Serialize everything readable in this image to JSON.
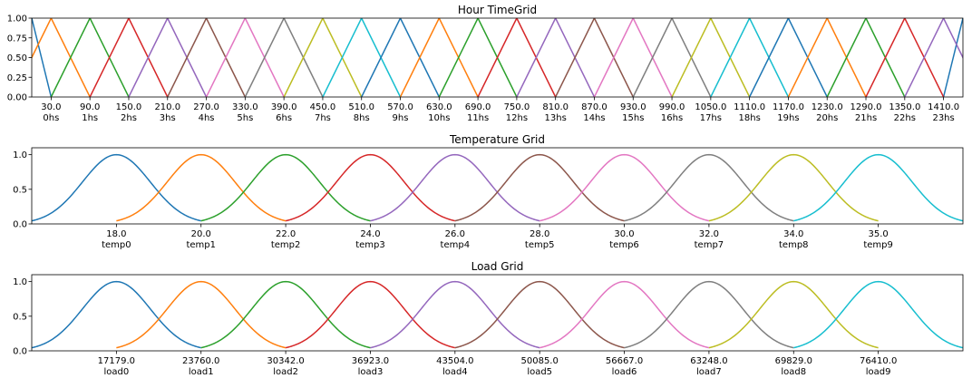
{
  "chart_data": [
    {
      "type": "line",
      "title": "Hour TimeGrid",
      "xlim": [
        0,
        1440
      ],
      "ylim": [
        0,
        1
      ],
      "yticks": [
        {
          "value": 0,
          "label": "0.00"
        },
        {
          "value": 0.25,
          "label": "0.25"
        },
        {
          "value": 0.5,
          "label": "0.50"
        },
        {
          "value": 0.75,
          "label": "0.75"
        },
        {
          "value": 1,
          "label": "1.00"
        }
      ],
      "xticks": [
        {
          "value": 30,
          "label": "30.0"
        },
        {
          "value": 90,
          "label": "90.0"
        },
        {
          "value": 150,
          "label": "150.0"
        },
        {
          "value": 210,
          "label": "210.0"
        },
        {
          "value": 270,
          "label": "270.0"
        },
        {
          "value": 330,
          "label": "330.0"
        },
        {
          "value": 390,
          "label": "390.0"
        },
        {
          "value": 450,
          "label": "450.0"
        },
        {
          "value": 510,
          "label": "510.0"
        },
        {
          "value": 570,
          "label": "570.0"
        },
        {
          "value": 630,
          "label": "630.0"
        },
        {
          "value": 690,
          "label": "690.0"
        },
        {
          "value": 750,
          "label": "750.0"
        },
        {
          "value": 810,
          "label": "810.0"
        },
        {
          "value": 870,
          "label": "870.0"
        },
        {
          "value": 930,
          "label": "930.0"
        },
        {
          "value": 990,
          "label": "990.0"
        },
        {
          "value": 1050,
          "label": "1050.0"
        },
        {
          "value": 1110,
          "label": "1110.0"
        },
        {
          "value": 1170,
          "label": "1170.0"
        },
        {
          "value": 1230,
          "label": "1230.0"
        },
        {
          "value": 1290,
          "label": "1290.0"
        },
        {
          "value": 1350,
          "label": "1350.0"
        },
        {
          "value": 1410,
          "label": "1410.0"
        }
      ],
      "xtick_sublabels": [
        "0hs",
        "1hs",
        "2hs",
        "3hs",
        "4hs",
        "5hs",
        "6hs",
        "7hs",
        "8hs",
        "9hs",
        "10hs",
        "11hs",
        "12hs",
        "13hs",
        "14hs",
        "15hs",
        "16hs",
        "17hs",
        "18hs",
        "19hs",
        "20hs",
        "21hs",
        "22hs",
        "23hs"
      ],
      "series": [
        {
          "color": "#1f77b4",
          "x": [
            0,
            30,
            null,
            1410,
            1440
          ],
          "values": [
            1,
            0,
            null,
            0,
            1
          ]
        },
        {
          "color": "#ff7f0e",
          "x": [
            -30,
            30,
            90
          ],
          "values": [
            0,
            1,
            0
          ]
        },
        {
          "color": "#2ca02c",
          "x": [
            30,
            90,
            150
          ],
          "values": [
            0,
            1,
            0
          ]
        },
        {
          "color": "#d62728",
          "x": [
            90,
            150,
            210
          ],
          "values": [
            0,
            1,
            0
          ]
        },
        {
          "color": "#9467bd",
          "x": [
            150,
            210,
            270
          ],
          "values": [
            0,
            1,
            0
          ]
        },
        {
          "color": "#8c564b",
          "x": [
            210,
            270,
            330
          ],
          "values": [
            0,
            1,
            0
          ]
        },
        {
          "color": "#e377c2",
          "x": [
            270,
            330,
            390
          ],
          "values": [
            0,
            1,
            0
          ]
        },
        {
          "color": "#7f7f7f",
          "x": [
            330,
            390,
            450
          ],
          "values": [
            0,
            1,
            0
          ]
        },
        {
          "color": "#bcbd22",
          "x": [
            390,
            450,
            510
          ],
          "values": [
            0,
            1,
            0
          ]
        },
        {
          "color": "#17becf",
          "x": [
            450,
            510,
            570
          ],
          "values": [
            0,
            1,
            0
          ]
        },
        {
          "color": "#1f77b4",
          "x": [
            510,
            570,
            630
          ],
          "values": [
            0,
            1,
            0
          ]
        },
        {
          "color": "#ff7f0e",
          "x": [
            570,
            630,
            690
          ],
          "values": [
            0,
            1,
            0
          ]
        },
        {
          "color": "#2ca02c",
          "x": [
            630,
            690,
            750
          ],
          "values": [
            0,
            1,
            0
          ]
        },
        {
          "color": "#d62728",
          "x": [
            690,
            750,
            810
          ],
          "values": [
            0,
            1,
            0
          ]
        },
        {
          "color": "#9467bd",
          "x": [
            750,
            810,
            870
          ],
          "values": [
            0,
            1,
            0
          ]
        },
        {
          "color": "#8c564b",
          "x": [
            810,
            870,
            930
          ],
          "values": [
            0,
            1,
            0
          ]
        },
        {
          "color": "#e377c2",
          "x": [
            870,
            930,
            990
          ],
          "values": [
            0,
            1,
            0
          ]
        },
        {
          "color": "#7f7f7f",
          "x": [
            930,
            990,
            1050
          ],
          "values": [
            0,
            1,
            0
          ]
        },
        {
          "color": "#bcbd22",
          "x": [
            990,
            1050,
            1110
          ],
          "values": [
            0,
            1,
            0
          ]
        },
        {
          "color": "#17becf",
          "x": [
            1050,
            1110,
            1170
          ],
          "values": [
            0,
            1,
            0
          ]
        },
        {
          "color": "#1f77b4",
          "x": [
            1110,
            1170,
            1230
          ],
          "values": [
            0,
            1,
            0
          ]
        },
        {
          "color": "#ff7f0e",
          "x": [
            1170,
            1230,
            1290
          ],
          "values": [
            0,
            1,
            0
          ]
        },
        {
          "color": "#2ca02c",
          "x": [
            1230,
            1290,
            1350
          ],
          "values": [
            0,
            1,
            0
          ]
        },
        {
          "color": "#d62728",
          "x": [
            1290,
            1350,
            1410
          ],
          "values": [
            0,
            1,
            0
          ]
        },
        {
          "color": "#9467bd",
          "x": [
            1350,
            1410,
            1470
          ],
          "values": [
            0,
            1,
            0
          ]
        }
      ]
    },
    {
      "type": "gaussian",
      "title": "Temperature Grid",
      "xlim": [
        -1,
        10
      ],
      "ylim": [
        0,
        1.1
      ],
      "yticks": [
        {
          "value": 0,
          "label": "0.0"
        },
        {
          "value": 0.5,
          "label": "0.5"
        },
        {
          "value": 1,
          "label": "1.0"
        }
      ],
      "xticks": [
        {
          "value": 0,
          "label": "18.0"
        },
        {
          "value": 1,
          "label": "20.0"
        },
        {
          "value": 2,
          "label": "22.0"
        },
        {
          "value": 3,
          "label": "24.0"
        },
        {
          "value": 4,
          "label": "26.0"
        },
        {
          "value": 5,
          "label": "28.0"
        },
        {
          "value": 6,
          "label": "30.0"
        },
        {
          "value": 7,
          "label": "32.0"
        },
        {
          "value": 8,
          "label": "34.0"
        },
        {
          "value": 9,
          "label": "35.0"
        }
      ],
      "xtick_sublabels": [
        "temp0",
        "temp1",
        "temp2",
        "temp3",
        "temp4",
        "temp5",
        "temp6",
        "temp7",
        "temp8",
        "temp9"
      ],
      "series": [
        {
          "color": "#1f77b4",
          "mean": 0,
          "sd": 0.4,
          "domain": [
            -1,
            1
          ]
        },
        {
          "color": "#ff7f0e",
          "mean": 1,
          "sd": 0.4,
          "domain": [
            0,
            2
          ]
        },
        {
          "color": "#2ca02c",
          "mean": 2,
          "sd": 0.4,
          "domain": [
            1,
            3
          ]
        },
        {
          "color": "#d62728",
          "mean": 3,
          "sd": 0.4,
          "domain": [
            2,
            4
          ]
        },
        {
          "color": "#9467bd",
          "mean": 4,
          "sd": 0.4,
          "domain": [
            3,
            5
          ]
        },
        {
          "color": "#8c564b",
          "mean": 5,
          "sd": 0.4,
          "domain": [
            4,
            6
          ]
        },
        {
          "color": "#e377c2",
          "mean": 6,
          "sd": 0.4,
          "domain": [
            5,
            7
          ]
        },
        {
          "color": "#7f7f7f",
          "mean": 7,
          "sd": 0.4,
          "domain": [
            6,
            8
          ]
        },
        {
          "color": "#bcbd22",
          "mean": 8,
          "sd": 0.4,
          "domain": [
            7,
            9
          ]
        },
        {
          "color": "#17becf",
          "mean": 9,
          "sd": 0.4,
          "domain": [
            8,
            10
          ]
        }
      ]
    },
    {
      "type": "gaussian",
      "title": "Load Grid",
      "xlim": [
        -1,
        10
      ],
      "ylim": [
        0,
        1.1
      ],
      "yticks": [
        {
          "value": 0,
          "label": "0.0"
        },
        {
          "value": 0.5,
          "label": "0.5"
        },
        {
          "value": 1,
          "label": "1.0"
        }
      ],
      "xticks": [
        {
          "value": 0,
          "label": "17179.0"
        },
        {
          "value": 1,
          "label": "23760.0"
        },
        {
          "value": 2,
          "label": "30342.0"
        },
        {
          "value": 3,
          "label": "36923.0"
        },
        {
          "value": 4,
          "label": "43504.0"
        },
        {
          "value": 5,
          "label": "50085.0"
        },
        {
          "value": 6,
          "label": "56667.0"
        },
        {
          "value": 7,
          "label": "63248.0"
        },
        {
          "value": 8,
          "label": "69829.0"
        },
        {
          "value": 9,
          "label": "76410.0"
        }
      ],
      "xtick_sublabels": [
        "load0",
        "load1",
        "load2",
        "load3",
        "load4",
        "load5",
        "load6",
        "load7",
        "load8",
        "load9"
      ],
      "series": [
        {
          "color": "#1f77b4",
          "mean": 0,
          "sd": 0.4,
          "domain": [
            -1,
            1
          ]
        },
        {
          "color": "#ff7f0e",
          "mean": 1,
          "sd": 0.4,
          "domain": [
            0,
            2
          ]
        },
        {
          "color": "#2ca02c",
          "mean": 2,
          "sd": 0.4,
          "domain": [
            1,
            3
          ]
        },
        {
          "color": "#d62728",
          "mean": 3,
          "sd": 0.4,
          "domain": [
            2,
            4
          ]
        },
        {
          "color": "#9467bd",
          "mean": 4,
          "sd": 0.4,
          "domain": [
            3,
            5
          ]
        },
        {
          "color": "#8c564b",
          "mean": 5,
          "sd": 0.4,
          "domain": [
            4,
            6
          ]
        },
        {
          "color": "#e377c2",
          "mean": 6,
          "sd": 0.4,
          "domain": [
            5,
            7
          ]
        },
        {
          "color": "#7f7f7f",
          "mean": 7,
          "sd": 0.4,
          "domain": [
            6,
            8
          ]
        },
        {
          "color": "#bcbd22",
          "mean": 8,
          "sd": 0.4,
          "domain": [
            7,
            9
          ]
        },
        {
          "color": "#17becf",
          "mean": 9,
          "sd": 0.4,
          "domain": [
            8,
            10
          ]
        }
      ]
    }
  ]
}
